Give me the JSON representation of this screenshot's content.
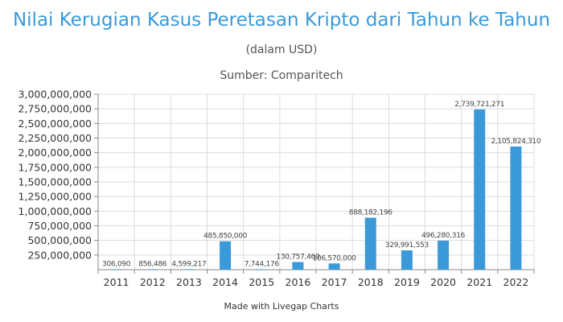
{
  "title": "Nilai Kerugian Kasus Peretasan Kripto dari Tahun ke Tahun",
  "subtitle": "(dalam USD)",
  "source": "Sumber: Comparitech",
  "footer": "Made with Livegap Charts",
  "colors": {
    "bar": "#3a9ad9",
    "title": "#3a9ad9",
    "grid": "#dcdcdc",
    "axis": "#888888"
  },
  "chart_data": {
    "type": "bar",
    "categories": [
      "2011",
      "2012",
      "2013",
      "2014",
      "2015",
      "2016",
      "2017",
      "2018",
      "2019",
      "2020",
      "2021",
      "2022"
    ],
    "values": [
      306090,
      856486,
      4599217,
      485850000,
      7744176,
      130757460,
      106570000,
      888182196,
      329991553,
      496280316,
      2739721271,
      2105824310
    ],
    "data_labels": [
      "306,090",
      "856,486",
      "4,599,217",
      "485,850,000",
      "7,744,176",
      "130,757,460",
      "106,570,000",
      "888,182,196",
      "329,991,553",
      "496,280,316",
      "2,739,721,271",
      "2,105,824,310"
    ],
    "yticks": [
      250000000,
      500000000,
      750000000,
      1000000000,
      1250000000,
      1500000000,
      1750000000,
      2000000000,
      2250000000,
      2500000000,
      2750000000,
      3000000000
    ],
    "ytick_labels": [
      "250,000,000",
      "500,000,000",
      "750,000,000",
      "1,000,000,000",
      "1,250,000,000",
      "1,500,000,000",
      "1,750,000,000",
      "2,000,000,000",
      "2,250,000,000",
      "2,500,000,000",
      "2,750,000,000",
      "3,000,000,000"
    ],
    "ylim": [
      0,
      3000000000
    ],
    "xlabel": "",
    "ylabel": "",
    "grid": true,
    "legend": "none"
  }
}
